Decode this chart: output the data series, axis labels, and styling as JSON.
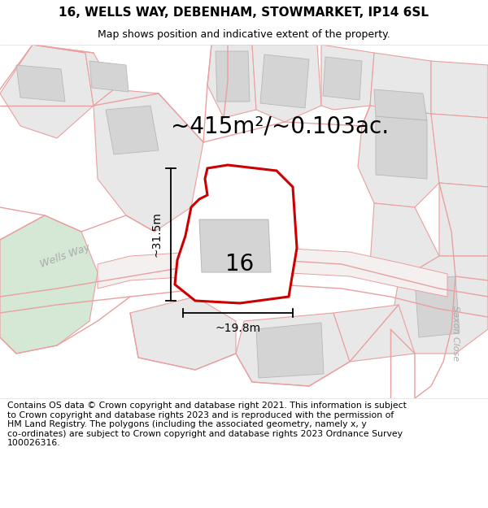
{
  "title": "16, WELLS WAY, DEBENHAM, STOWMARKET, IP14 6SL",
  "subtitle": "Map shows position and indicative extent of the property.",
  "area_text": "~415m²/~0.103ac.",
  "dim_vertical": "~31.5m",
  "dim_horizontal": "~19.8m",
  "label_number": "16",
  "footer": "Contains OS data © Crown copyright and database right 2021. This information is subject to Crown copyright and database rights 2023 and is reproduced with the permission of HM Land Registry. The polygons (including the associated geometry, namely x, y co-ordinates) are subject to Crown copyright and database rights 2023 Ordnance Survey 100026316.",
  "bg_color": "#ffffff",
  "plot_fill": "#e8e8e8",
  "plot_edge": "#c0c0c0",
  "road_line_color": "#e8a0a0",
  "road_line_color2": "#d0b0b0",
  "prop_fill": "#ffffff",
  "prop_edge": "#cc0000",
  "building_fill": "#d4d4d4",
  "building_edge": "#b8b8b8",
  "green_fill": "#d5e8d5",
  "green_edge": "#c0d0c0",
  "label_color": "#aaaaaa",
  "title_fontsize": 11,
  "subtitle_fontsize": 9,
  "area_fontsize": 20,
  "label_fontsize": 20,
  "dim_fontsize": 10,
  "footer_fontsize": 7.8,
  "road_label_fontsize": 9,
  "figwidth": 6.0,
  "figheight": 6.25,
  "dpi": 100
}
